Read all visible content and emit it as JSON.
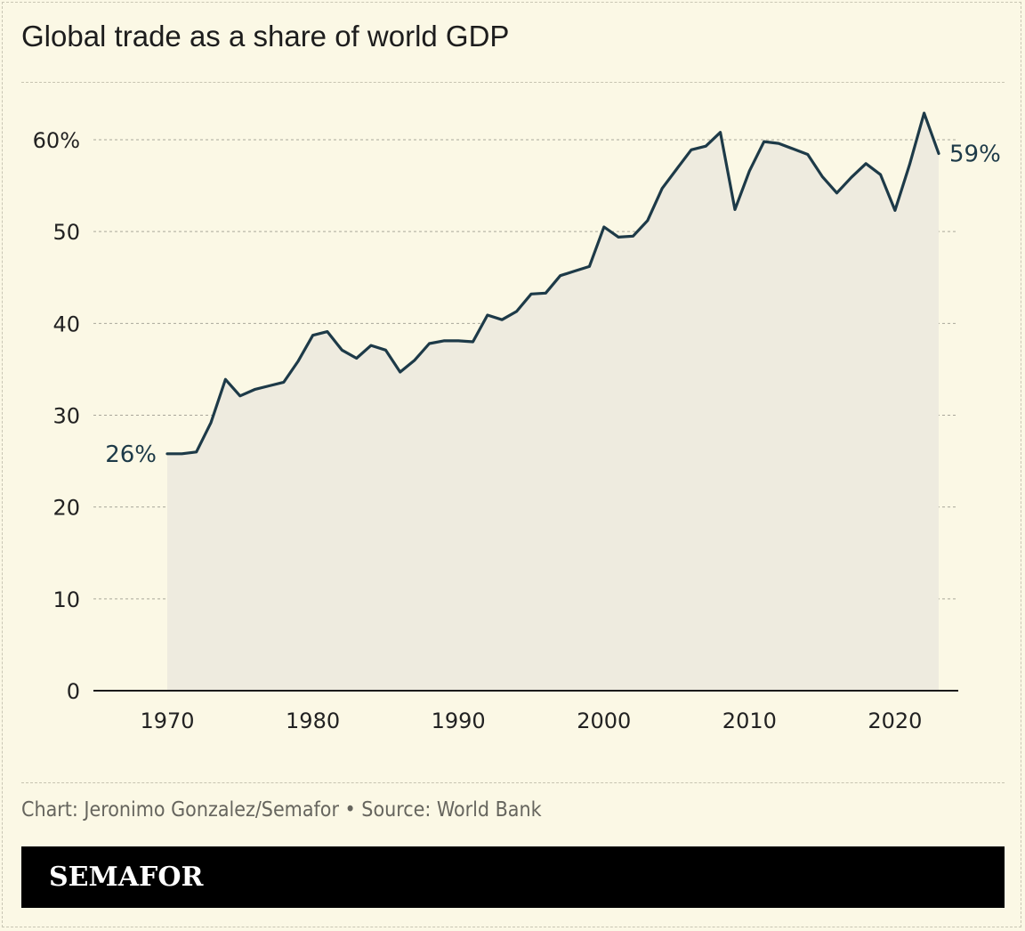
{
  "title": "Global trade as a share of world GDP",
  "source": "Chart: Jeronimo Gonzalez/Semafor • Source: World Bank",
  "brand": "SEMAFOR",
  "colors": {
    "background": "#fbf8e5",
    "line": "#1d3a48",
    "area": "#eeebdf",
    "grid": "#a9a79a"
  },
  "chart_data": {
    "type": "area",
    "title": "Global trade as a share of world GDP",
    "xlabel": "",
    "ylabel": "",
    "xlim": [
      1965,
      2024
    ],
    "ylim": [
      0,
      60
    ],
    "y_ticks": [
      {
        "value": 0,
        "label": "0"
      },
      {
        "value": 10,
        "label": "10"
      },
      {
        "value": 20,
        "label": "20"
      },
      {
        "value": 30,
        "label": "30"
      },
      {
        "value": 40,
        "label": "40"
      },
      {
        "value": 50,
        "label": "50"
      },
      {
        "value": 60,
        "label": "60%"
      }
    ],
    "x_ticks": [
      {
        "value": 1970,
        "label": "1970"
      },
      {
        "value": 1980,
        "label": "1980"
      },
      {
        "value": 1990,
        "label": "1990"
      },
      {
        "value": 2000,
        "label": "2000"
      },
      {
        "value": 2010,
        "label": "2010"
      },
      {
        "value": 2020,
        "label": "2020"
      }
    ],
    "grid": true,
    "annotations": [
      {
        "x": 1970,
        "y": 25.8,
        "text": "26%",
        "side": "left"
      },
      {
        "x": 2023,
        "y": 58.5,
        "text": "59%",
        "side": "right"
      }
    ],
    "series": [
      {
        "x": [
          1970,
          1971,
          1972,
          1973,
          1974,
          1975,
          1976,
          1977,
          1978,
          1979,
          1980,
          1981,
          1982,
          1983,
          1984,
          1985,
          1986,
          1987,
          1988,
          1989,
          1990,
          1991,
          1992,
          1993,
          1994,
          1995,
          1996,
          1997,
          1998,
          1999,
          2000,
          2001,
          2002,
          2003,
          2004,
          2005,
          2006,
          2007,
          2008,
          2009,
          2010,
          2011,
          2012,
          2013,
          2014,
          2015,
          2016,
          2017,
          2018,
          2019,
          2020,
          2021,
          2022,
          2023
        ],
        "values": [
          25.8,
          25.8,
          26.0,
          29.2,
          33.9,
          32.1,
          32.8,
          33.2,
          33.6,
          35.9,
          38.7,
          39.1,
          37.1,
          36.2,
          37.6,
          37.1,
          34.7,
          36.0,
          37.8,
          38.1,
          38.1,
          38.0,
          40.9,
          40.4,
          41.3,
          43.2,
          43.3,
          45.2,
          45.7,
          46.2,
          50.5,
          49.4,
          49.5,
          51.2,
          54.7,
          56.8,
          58.9,
          59.3,
          60.8,
          52.4,
          56.6,
          59.8,
          59.6,
          59.0,
          58.4,
          56.0,
          54.2,
          55.9,
          57.4,
          56.2,
          52.3,
          57.3,
          62.9,
          58.5
        ]
      }
    ]
  }
}
